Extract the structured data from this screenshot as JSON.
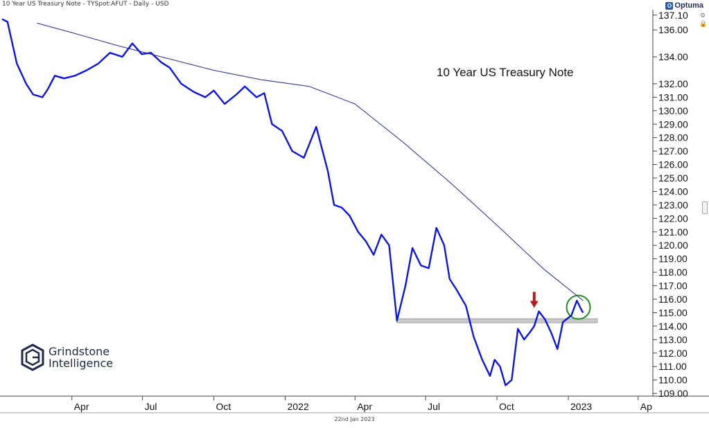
{
  "header": {
    "title": "10 Year US Treasury Note - TYSpot:AFUT - Daily - USD"
  },
  "brand": {
    "name": "Optuma",
    "icon": "optuma-logo-icon"
  },
  "footer": {
    "date": "22nd Jan 2023"
  },
  "logo": {
    "line1": "Grindstone",
    "line2": "Intelligence"
  },
  "toolbar": {
    "icons": [
      "settings-icon",
      "lock-icon"
    ]
  },
  "colors": {
    "price": "#0a12e6",
    "ma": "#1f2a8a",
    "support": "#c8c8c8",
    "arrow": "#b51c1c",
    "circle": "#1f8a1f"
  },
  "chart_data": {
    "type": "line",
    "title": "10 Year US Treasury Note",
    "x_ticks": [
      "Apr",
      "Jul",
      "Oct",
      "2022",
      "Apr",
      "Jul",
      "Oct",
      "2023",
      "Ap"
    ],
    "y_ticks": [
      "137.10",
      "136.00",
      "134.00",
      "132.00",
      "131.00",
      "130.00",
      "129.00",
      "128.00",
      "127.00",
      "126.00",
      "125.00",
      "124.00",
      "123.00",
      "122.00",
      "121.00",
      "120.00",
      "119.00",
      "118.00",
      "117.00",
      "116.00",
      "115.00",
      "114.00",
      "113.00",
      "112.00",
      "111.00",
      "110.00",
      "109.00"
    ],
    "ylim": [
      108.8,
      137.5
    ],
    "x_range": [
      "2021-01-01",
      "2023-04-20"
    ],
    "grid": false,
    "series": [
      {
        "style": "price",
        "x": [
          "2021-01-01",
          "2021-01-08",
          "2021-01-20",
          "2021-02-01",
          "2021-02-10",
          "2021-02-22",
          "2021-03-01",
          "2021-03-10",
          "2021-03-22",
          "2021-04-05",
          "2021-04-20",
          "2021-05-05",
          "2021-05-20",
          "2021-06-05",
          "2021-06-18",
          "2021-06-30",
          "2021-07-12",
          "2021-07-25",
          "2021-08-05",
          "2021-08-20",
          "2021-09-05",
          "2021-09-20",
          "2021-10-01",
          "2021-10-15",
          "2021-10-30",
          "2021-11-10",
          "2021-11-25",
          "2021-12-05",
          "2021-12-15",
          "2021-12-28",
          "2022-01-10",
          "2022-01-25",
          "2022-02-10",
          "2022-02-25",
          "2022-03-05",
          "2022-03-15",
          "2022-03-25",
          "2022-04-05",
          "2022-04-15",
          "2022-04-25",
          "2022-05-05",
          "2022-05-15",
          "2022-05-25",
          "2022-06-05",
          "2022-06-14",
          "2022-06-25",
          "2022-07-05",
          "2022-07-15",
          "2022-07-25",
          "2022-08-01",
          "2022-08-10",
          "2022-08-22",
          "2022-09-01",
          "2022-09-12",
          "2022-09-22",
          "2022-09-28",
          "2022-10-05",
          "2022-10-12",
          "2022-10-20",
          "2022-10-28",
          "2022-11-05",
          "2022-11-12",
          "2022-11-18",
          "2022-11-24",
          "2022-12-02",
          "2022-12-10",
          "2022-12-18",
          "2022-12-25",
          "2023-01-05",
          "2023-01-12",
          "2023-01-18",
          "2023-01-20"
        ],
        "y": [
          136.8,
          136.6,
          133.5,
          132.0,
          131.2,
          131.0,
          131.6,
          132.6,
          132.4,
          132.6,
          133.0,
          133.5,
          134.3,
          134.0,
          135.0,
          134.2,
          134.3,
          133.6,
          133.2,
          132.0,
          131.4,
          131.0,
          131.5,
          130.5,
          131.2,
          131.8,
          131.0,
          131.3,
          129.0,
          128.5,
          127.0,
          126.5,
          128.8,
          125.5,
          123.0,
          122.8,
          122.2,
          121.0,
          120.3,
          119.3,
          120.8,
          120.0,
          114.4,
          117.0,
          119.8,
          118.5,
          118.3,
          121.3,
          120.0,
          117.5,
          116.7,
          115.5,
          113.2,
          111.5,
          110.3,
          111.5,
          111.0,
          109.6,
          110.0,
          113.8,
          113.0,
          113.5,
          114.0,
          115.1,
          114.5,
          113.5,
          112.3,
          114.3,
          114.8,
          115.9,
          115.2,
          115.0
        ]
      },
      {
        "style": "moving-average",
        "x": [
          "2021-02-15",
          "2021-04-01",
          "2021-06-01",
          "2021-08-01",
          "2021-10-01",
          "2021-12-01",
          "2022-02-01",
          "2022-04-01",
          "2022-06-01",
          "2022-08-01",
          "2022-10-01",
          "2022-12-01",
          "2023-01-20"
        ],
        "y": [
          136.5,
          135.8,
          134.8,
          133.9,
          133.0,
          132.3,
          131.8,
          130.5,
          127.7,
          124.7,
          121.5,
          118.2,
          115.9
        ]
      }
    ],
    "annotations": {
      "support_level": 114.4,
      "arrow_at": {
        "x": "2022-11-18",
        "y": 115.1
      },
      "circle_at": {
        "x": "2023-01-14",
        "y": 115.4
      }
    }
  }
}
